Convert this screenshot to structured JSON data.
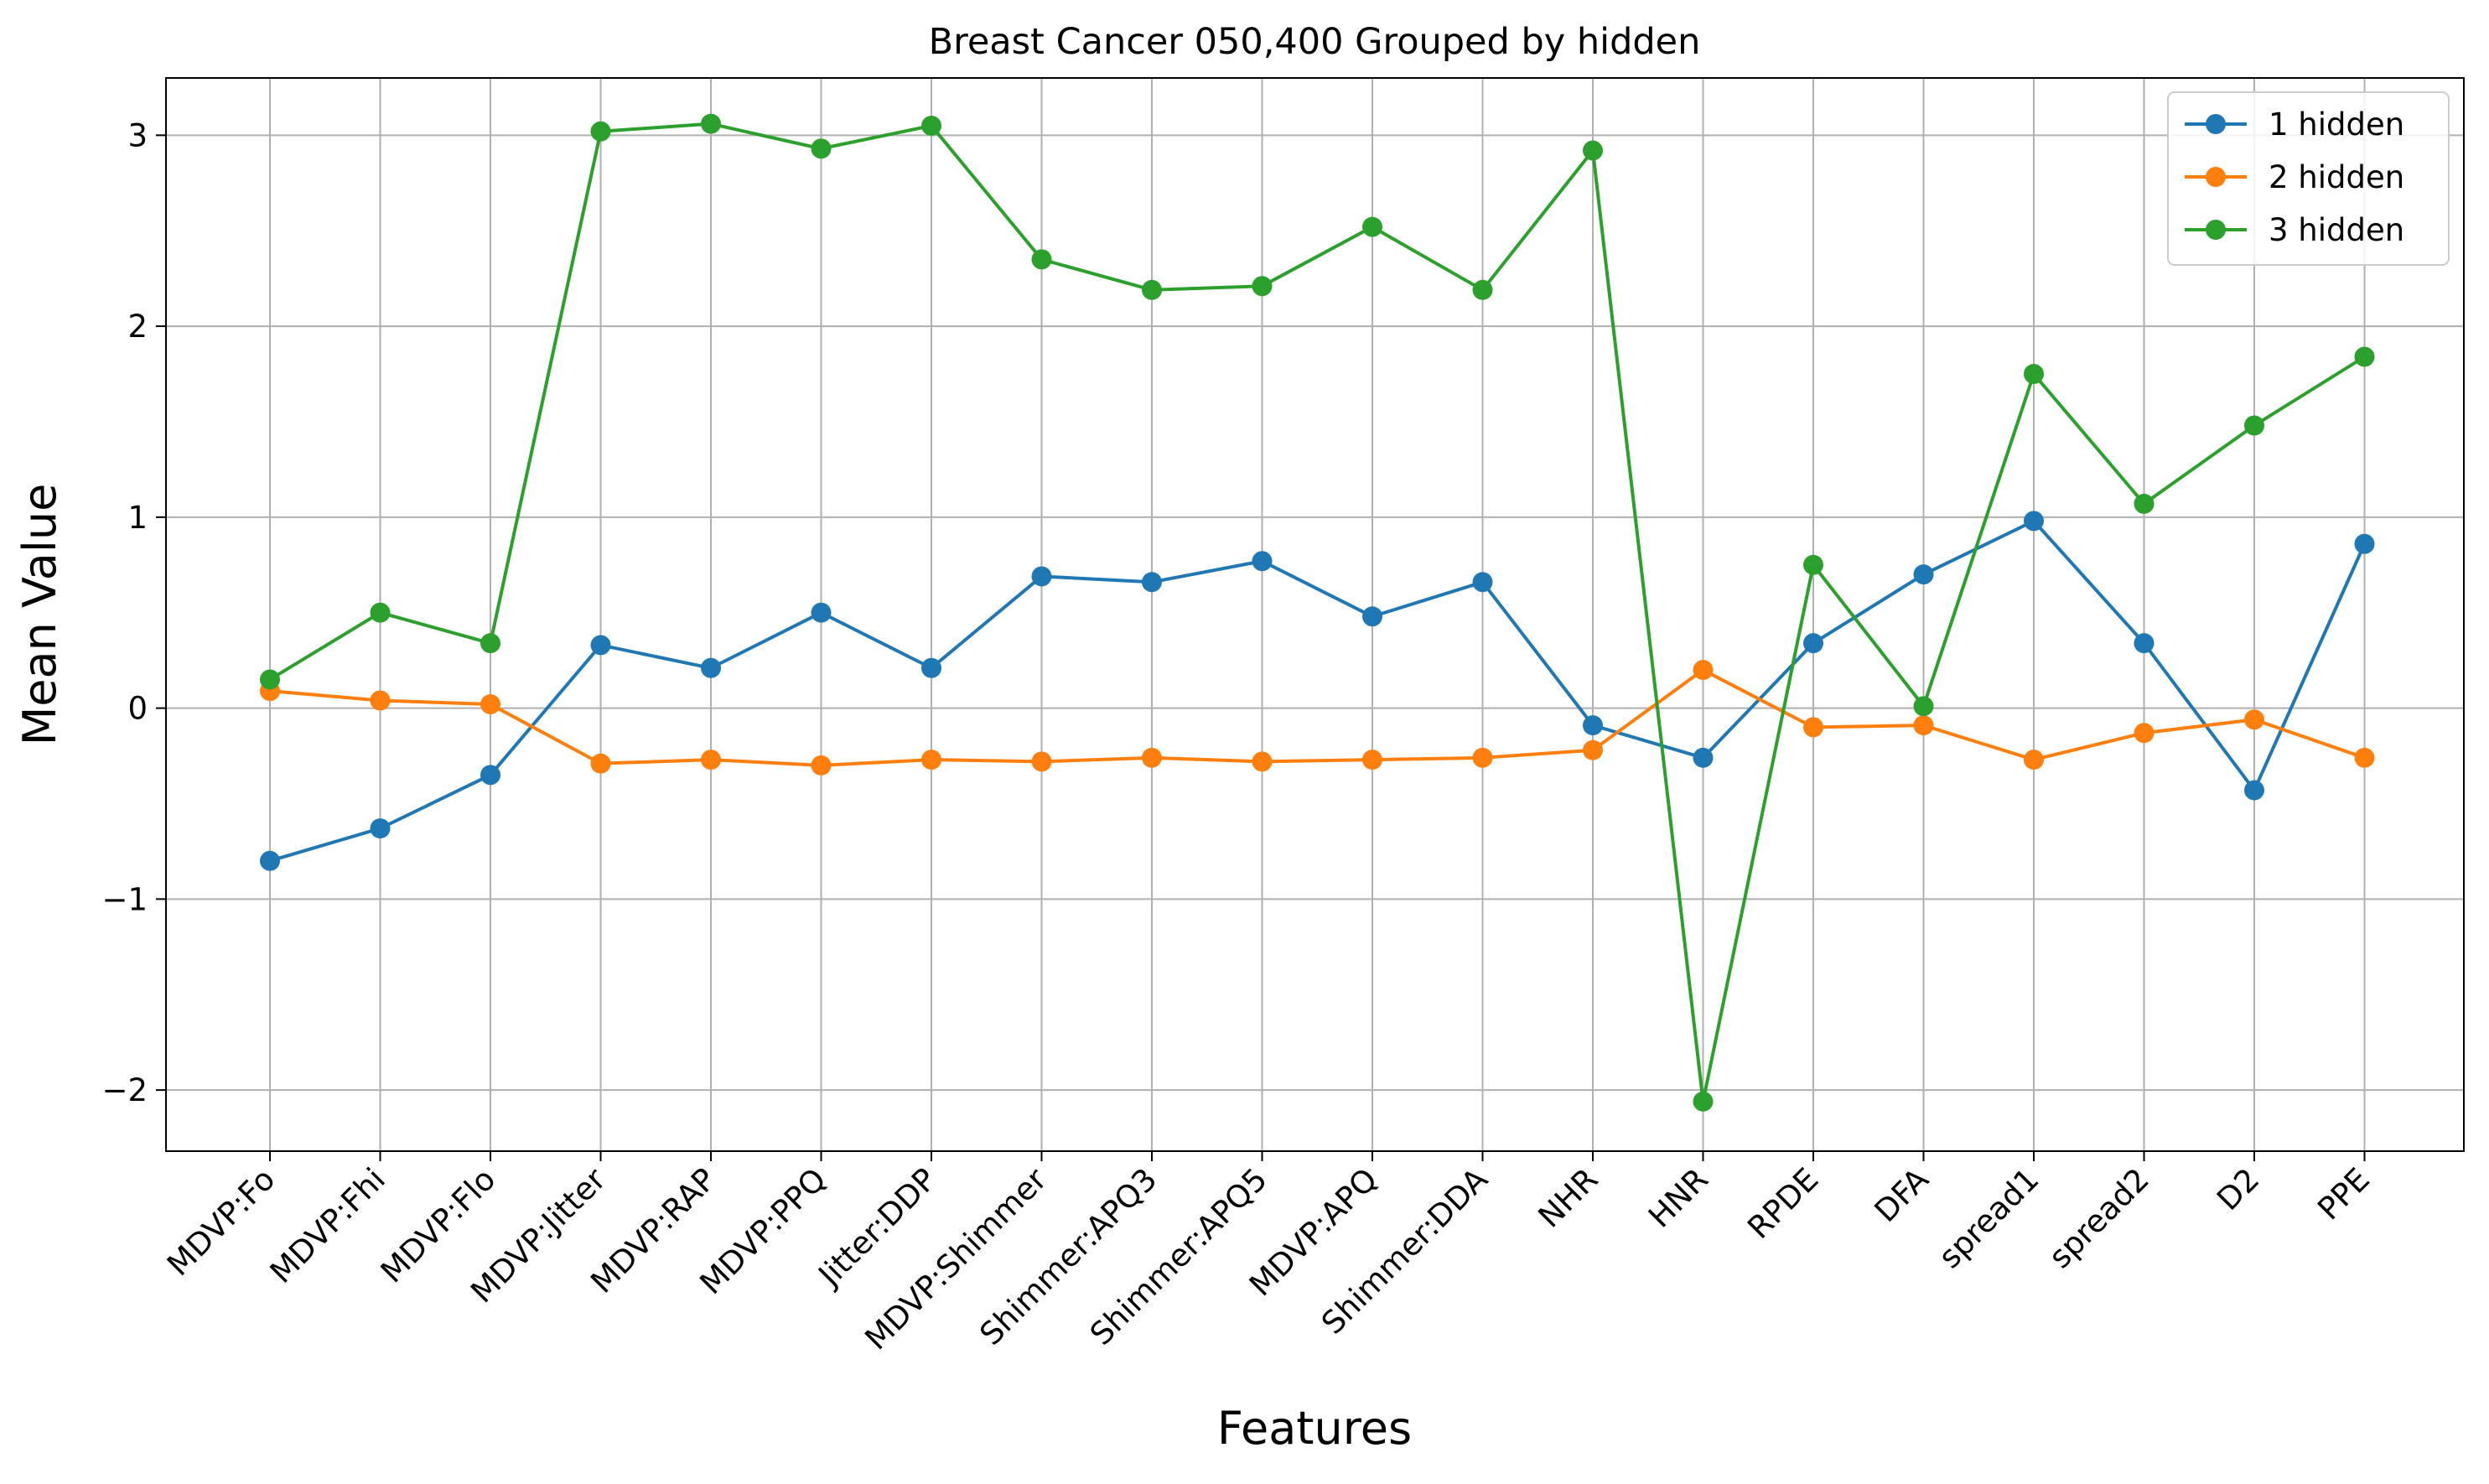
{
  "chart_data": {
    "type": "line",
    "title": "Breast Cancer 050,400 Grouped by hidden",
    "xlabel": "Features",
    "ylabel": "Mean Value",
    "ylim": [
      -2.32,
      3.3
    ],
    "yticks": [
      -2,
      -1,
      0,
      1,
      2,
      3
    ],
    "ytick_labels": [
      "−2",
      "−1",
      "0",
      "1",
      "2",
      "3"
    ],
    "grid": true,
    "legend_position": "top-right",
    "categories": [
      "MDVP:Fo",
      "MDVP:Fhi",
      "MDVP:Flo",
      "MDVP:Jitter",
      "MDVP:RAP",
      "MDVP:PPQ",
      "Jitter:DDP",
      "MDVP:Shimmer",
      "Shimmer:APQ3",
      "Shimmer:APQ5",
      "MDVP:APQ",
      "Shimmer:DDA",
      "NHR",
      "HNR",
      "RPDE",
      "DFA",
      "spread1",
      "spread2",
      "D2",
      "PPE"
    ],
    "series": [
      {
        "name": "1 hidden",
        "color": "#1f77b4",
        "values": [
          -0.8,
          -0.63,
          -0.35,
          0.33,
          0.21,
          0.5,
          0.21,
          0.69,
          0.66,
          0.77,
          0.48,
          0.66,
          -0.09,
          -0.26,
          0.34,
          0.7,
          0.98,
          0.34,
          -0.43,
          0.86
        ]
      },
      {
        "name": "2 hidden",
        "color": "#ff7f0e",
        "values": [
          0.09,
          0.04,
          0.02,
          -0.29,
          -0.27,
          -0.3,
          -0.27,
          -0.28,
          -0.26,
          -0.28,
          -0.27,
          -0.26,
          -0.22,
          0.2,
          -0.1,
          -0.09,
          -0.27,
          -0.13,
          -0.06,
          -0.26
        ]
      },
      {
        "name": "3 hidden",
        "color": "#2ca02c",
        "values": [
          0.15,
          0.5,
          0.34,
          3.02,
          3.06,
          2.93,
          3.05,
          2.35,
          2.19,
          2.21,
          2.52,
          2.19,
          2.92,
          -2.06,
          0.75,
          0.01,
          1.75,
          1.07,
          1.48,
          1.84
        ]
      }
    ]
  }
}
